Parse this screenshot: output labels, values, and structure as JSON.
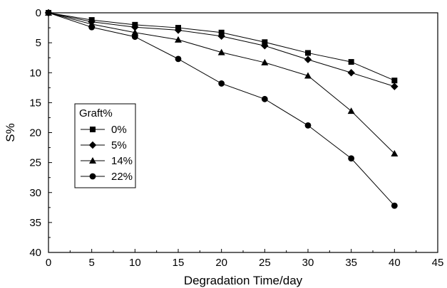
{
  "chart_data": {
    "type": "line",
    "title": "",
    "xlabel": "Degradation Time/day",
    "ylabel": "S%",
    "xlim": [
      0,
      45
    ],
    "ylim": [
      0,
      40
    ],
    "y_inverted": true,
    "xticks": [
      0,
      5,
      10,
      15,
      20,
      25,
      30,
      35,
      40,
      45
    ],
    "yticks": [
      0,
      5,
      10,
      15,
      20,
      25,
      30,
      35,
      40
    ],
    "grid": false,
    "legend": {
      "title": "Graft%",
      "position": "left-middle"
    },
    "series": [
      {
        "name": "0%",
        "marker": "square",
        "x": [
          0,
          5,
          10,
          15,
          20,
          25,
          30,
          35,
          40
        ],
        "y": [
          0,
          1.2,
          2.0,
          2.5,
          3.3,
          4.9,
          6.7,
          8.2,
          11.3
        ]
      },
      {
        "name": "5%",
        "marker": "diamond",
        "x": [
          0,
          5,
          10,
          15,
          20,
          25,
          30,
          35,
          40
        ],
        "y": [
          0,
          1.5,
          2.4,
          2.9,
          3.9,
          5.5,
          7.8,
          10.0,
          12.3
        ]
      },
      {
        "name": "14%",
        "marker": "triangle",
        "x": [
          0,
          5,
          10,
          15,
          20,
          25,
          30,
          35,
          40
        ],
        "y": [
          0,
          1.9,
          3.3,
          4.5,
          6.6,
          8.3,
          10.5,
          16.4,
          23.5
        ]
      },
      {
        "name": "22%",
        "marker": "circle",
        "x": [
          0,
          5,
          10,
          15,
          20,
          25,
          30,
          35,
          40
        ],
        "y": [
          0,
          2.4,
          4.0,
          7.7,
          11.8,
          14.4,
          18.8,
          24.3,
          32.2
        ]
      }
    ]
  }
}
